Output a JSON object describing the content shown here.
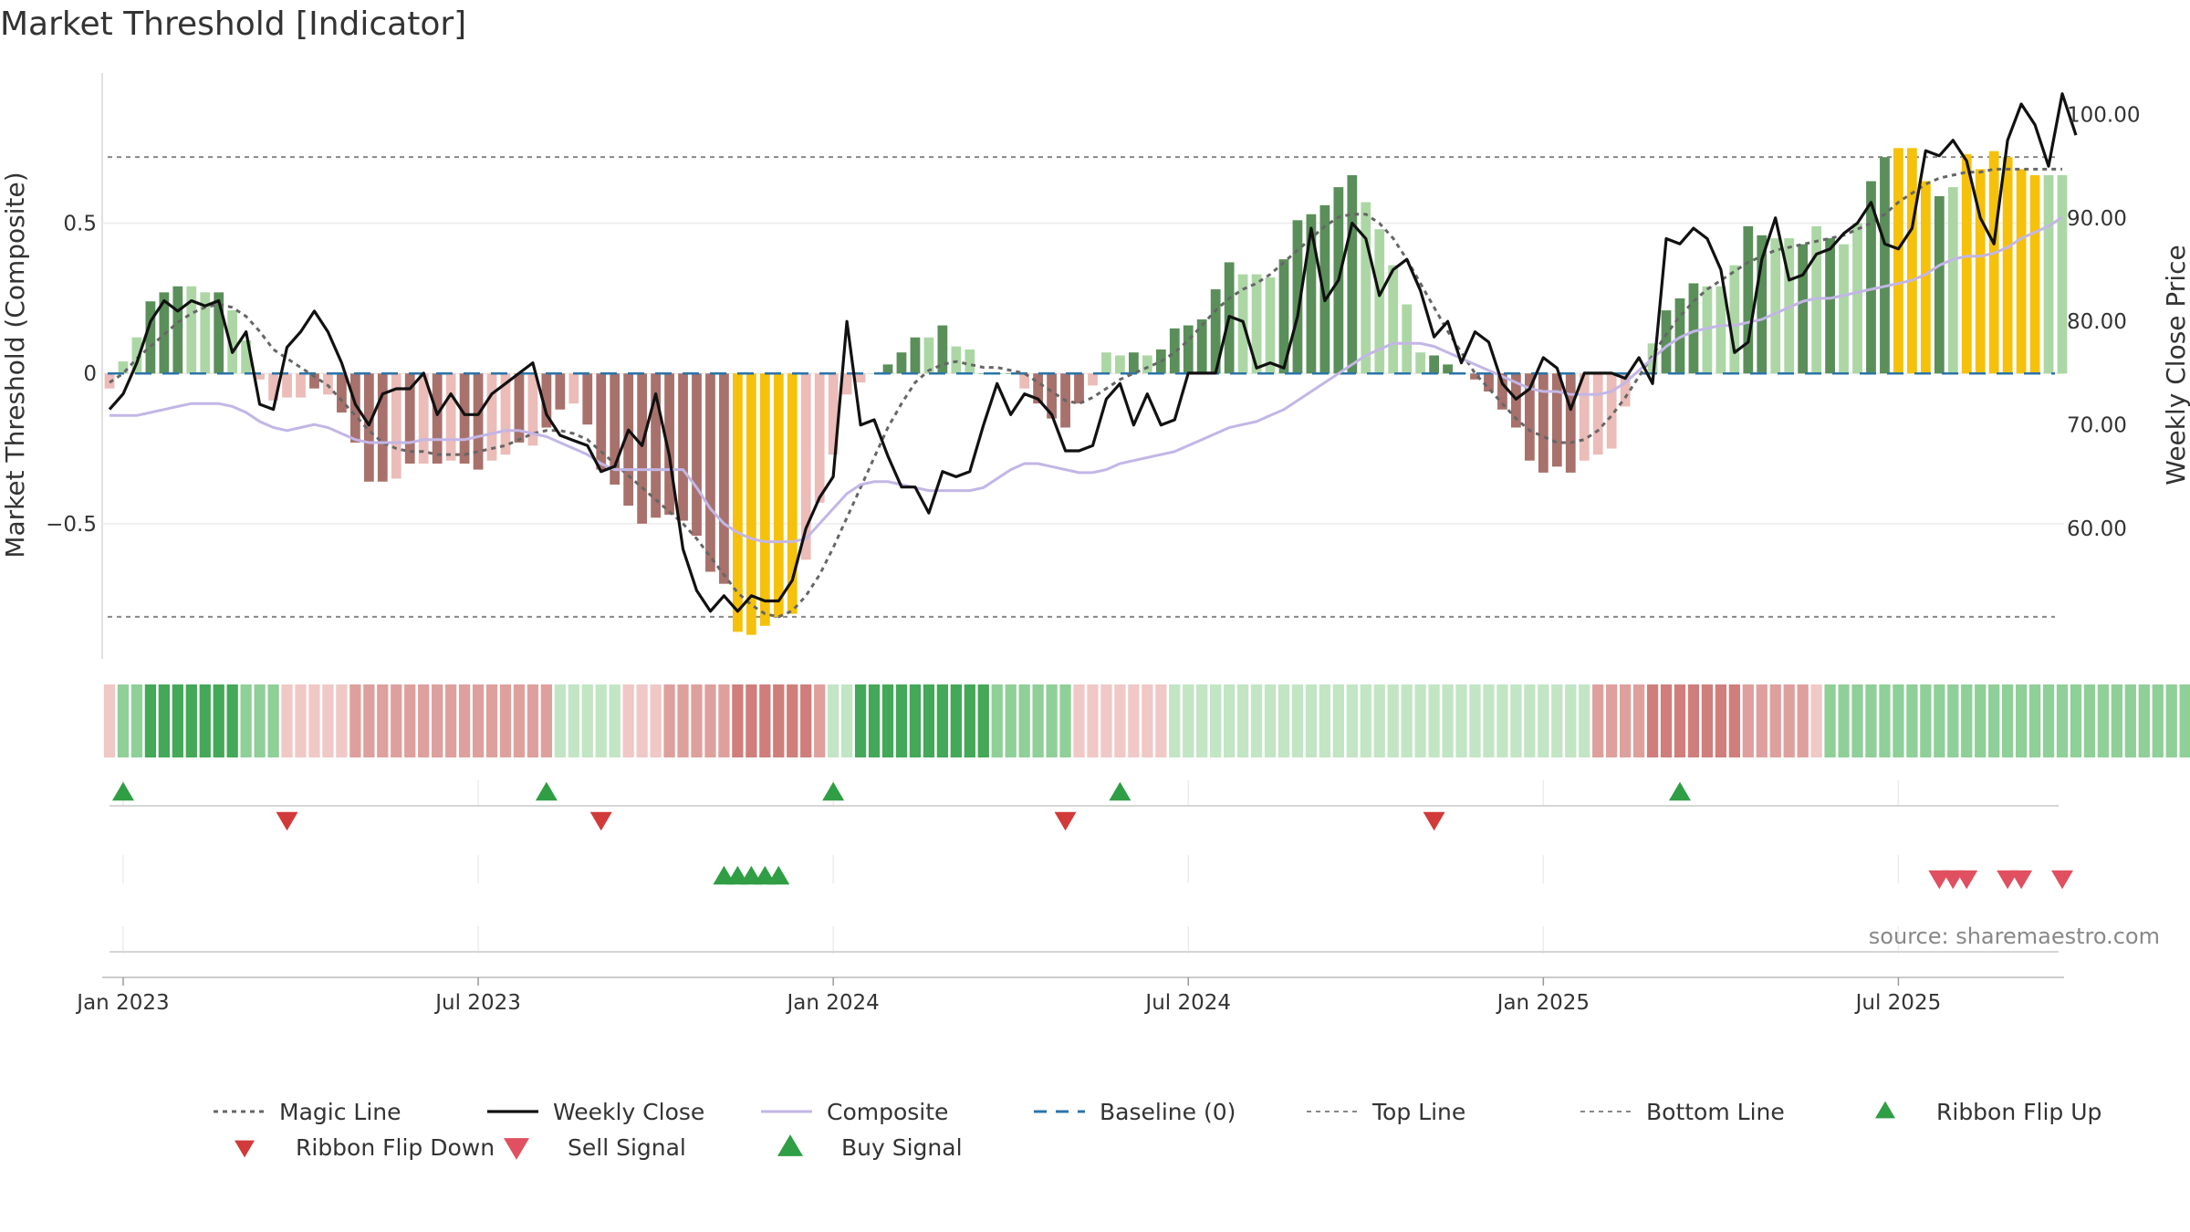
{
  "chart_data": {
    "type": "bar",
    "title": "Market Threshold [Indicator]",
    "ylabel_left": "Market Threshold (Composite)",
    "ylabel_right": "Weekly Close Price",
    "source": "source: sharemaestro.com",
    "left_axis": {
      "range": [
        -0.95,
        1.0
      ],
      "ticks": [
        "0.5",
        "0",
        "−0.5"
      ],
      "tick_values": [
        0.5,
        0,
        -0.5
      ]
    },
    "right_axis": {
      "range": [
        47.4,
        104.0
      ],
      "ticks": [
        "100.00",
        "90.00",
        "80.00",
        "70.00",
        "60.00"
      ],
      "tick_values": [
        100,
        90,
        80,
        70,
        60
      ]
    },
    "x_axis": {
      "start_date": "2022-12-25",
      "weeks": 144,
      "ticks": [
        "Jan 2023",
        "Jul 2023",
        "Jan 2024",
        "Jul 2024",
        "Jan 2025",
        "Jul 2025"
      ],
      "tick_weeks": [
        1,
        27,
        53,
        79,
        105,
        131
      ]
    },
    "reference_lines": {
      "top_line": 0.72,
      "bottom_line": -0.81,
      "baseline": 0
    },
    "composite_bars": [
      -0.05,
      0.04,
      0.12,
      0.24,
      0.27,
      0.29,
      0.29,
      0.27,
      0.27,
      0.21,
      0.11,
      -0.02,
      -0.09,
      -0.08,
      -0.08,
      -0.05,
      -0.07,
      -0.13,
      -0.23,
      -0.36,
      -0.36,
      -0.35,
      -0.3,
      -0.3,
      -0.3,
      -0.29,
      -0.3,
      -0.32,
      -0.29,
      -0.27,
      -0.23,
      -0.24,
      -0.18,
      -0.12,
      -0.1,
      -0.17,
      -0.32,
      -0.37,
      -0.44,
      -0.5,
      -0.48,
      -0.47,
      -0.49,
      -0.54,
      -0.66,
      -0.7,
      -0.86,
      -0.87,
      -0.84,
      -0.81,
      -0.8,
      -0.62,
      -0.43,
      -0.27,
      -0.07,
      -0.03,
      0.0,
      0.03,
      0.07,
      0.12,
      0.12,
      0.16,
      0.09,
      0.08,
      0.0,
      0.0,
      0.0,
      -0.05,
      -0.1,
      -0.15,
      -0.18,
      -0.1,
      -0.04,
      0.07,
      0.06,
      0.07,
      0.06,
      0.08,
      0.15,
      0.16,
      0.18,
      0.28,
      0.37,
      0.33,
      0.33,
      0.32,
      0.38,
      0.51,
      0.53,
      0.56,
      0.62,
      0.66,
      0.57,
      0.48,
      0.36,
      0.23,
      0.07,
      0.06,
      0.03,
      0.0,
      -0.02,
      -0.06,
      -0.12,
      -0.18,
      -0.29,
      -0.33,
      -0.31,
      -0.33,
      -0.29,
      -0.27,
      -0.25,
      -0.11,
      0.0,
      0.1,
      0.21,
      0.25,
      0.3,
      0.29,
      0.29,
      0.36,
      0.49,
      0.46,
      0.45,
      0.45,
      0.43,
      0.49,
      0.45,
      0.43,
      0.5,
      0.64,
      0.72,
      0.75,
      0.75,
      0.64,
      0.59,
      0.62,
      0.73,
      0.68,
      0.74,
      0.72,
      0.68,
      0.66,
      0.66,
      0.66
    ],
    "bar_states": [
      "lr",
      "lg",
      "lg",
      "dg",
      "dg",
      "dg",
      "lg",
      "lg",
      "dg",
      "lg",
      "lg",
      "lr",
      "lr",
      "lr",
      "lr",
      "dr",
      "lr",
      "dr",
      "dr",
      "dr",
      "dr",
      "lr",
      "dr",
      "lr",
      "dr",
      "lr",
      "dr",
      "dr",
      "lr",
      "lr",
      "dr",
      "lr",
      "dr",
      "dr",
      "lr",
      "dr",
      "dr",
      "dr",
      "dr",
      "dr",
      "dr",
      "dr",
      "dr",
      "dr",
      "dr",
      "dr",
      "y",
      "y",
      "y",
      "y",
      "y",
      "lr",
      "lr",
      "lr",
      "lr",
      "lr",
      "lg",
      "dg",
      "dg",
      "dg",
      "lg",
      "dg",
      "lg",
      "lg",
      "dg",
      "dg",
      "dg",
      "lr",
      "dr",
      "dr",
      "dr",
      "dr",
      "lr",
      "lg",
      "lg",
      "dg",
      "lg",
      "dg",
      "dg",
      "dg",
      "dg",
      "dg",
      "dg",
      "lg",
      "lg",
      "lg",
      "dg",
      "dg",
      "dg",
      "dg",
      "dg",
      "dg",
      "lg",
      "lg",
      "lg",
      "lg",
      "lg",
      "dg",
      "dg",
      "dg",
      "dr",
      "dr",
      "dr",
      "dr",
      "dr",
      "dr",
      "dr",
      "dr",
      "lr",
      "lr",
      "lr",
      "lr",
      "lr",
      "lg",
      "dg",
      "dg",
      "dg",
      "lg",
      "lg",
      "lg",
      "dg",
      "dg",
      "lg",
      "lg",
      "dg",
      "lg",
      "dg",
      "lg",
      "lg",
      "dg",
      "dg",
      "y",
      "y",
      "y",
      "dg",
      "lg",
      "y",
      "y",
      "y",
      "y",
      "y",
      "y",
      "lg",
      "lg",
      "lg"
    ],
    "magic_line": [
      -0.03,
      0.0,
      0.05,
      0.09,
      0.13,
      0.17,
      0.2,
      0.22,
      0.23,
      0.22,
      0.19,
      0.14,
      0.08,
      0.05,
      0.02,
      -0.01,
      -0.04,
      -0.09,
      -0.14,
      -0.19,
      -0.23,
      -0.25,
      -0.26,
      -0.26,
      -0.27,
      -0.27,
      -0.27,
      -0.26,
      -0.25,
      -0.24,
      -0.22,
      -0.2,
      -0.19,
      -0.19,
      -0.2,
      -0.22,
      -0.26,
      -0.3,
      -0.34,
      -0.38,
      -0.42,
      -0.46,
      -0.5,
      -0.55,
      -0.61,
      -0.67,
      -0.73,
      -0.77,
      -0.8,
      -0.81,
      -0.79,
      -0.74,
      -0.67,
      -0.58,
      -0.48,
      -0.38,
      -0.28,
      -0.18,
      -0.1,
      -0.03,
      0.01,
      0.03,
      0.04,
      0.03,
      0.02,
      0.02,
      0.01,
      0.0,
      -0.03,
      -0.06,
      -0.09,
      -0.1,
      -0.08,
      -0.05,
      -0.02,
      0.0,
      0.02,
      0.04,
      0.07,
      0.11,
      0.16,
      0.21,
      0.25,
      0.28,
      0.3,
      0.33,
      0.37,
      0.41,
      0.45,
      0.49,
      0.52,
      0.53,
      0.53,
      0.5,
      0.45,
      0.38,
      0.3,
      0.22,
      0.14,
      0.07,
      0.0,
      -0.05,
      -0.1,
      -0.15,
      -0.19,
      -0.21,
      -0.23,
      -0.23,
      -0.22,
      -0.19,
      -0.14,
      -0.08,
      -0.01,
      0.06,
      0.13,
      0.19,
      0.24,
      0.28,
      0.31,
      0.34,
      0.37,
      0.39,
      0.41,
      0.42,
      0.43,
      0.44,
      0.45,
      0.46,
      0.48,
      0.5,
      0.53,
      0.57,
      0.6,
      0.63,
      0.65,
      0.66,
      0.67,
      0.67,
      0.68,
      0.68,
      0.68,
      0.68,
      0.68,
      0.68
    ],
    "composite_line": [
      -0.14,
      -0.14,
      -0.14,
      -0.13,
      -0.12,
      -0.11,
      -0.1,
      -0.1,
      -0.1,
      -0.11,
      -0.13,
      -0.16,
      -0.18,
      -0.19,
      -0.18,
      -0.17,
      -0.18,
      -0.2,
      -0.22,
      -0.23,
      -0.23,
      -0.23,
      -0.23,
      -0.22,
      -0.22,
      -0.22,
      -0.22,
      -0.21,
      -0.2,
      -0.19,
      -0.19,
      -0.2,
      -0.21,
      -0.23,
      -0.25,
      -0.27,
      -0.3,
      -0.32,
      -0.32,
      -0.32,
      -0.32,
      -0.32,
      -0.32,
      -0.38,
      -0.45,
      -0.5,
      -0.53,
      -0.55,
      -0.56,
      -0.56,
      -0.56,
      -0.55,
      -0.5,
      -0.45,
      -0.4,
      -0.37,
      -0.36,
      -0.36,
      -0.37,
      -0.38,
      -0.39,
      -0.39,
      -0.39,
      -0.39,
      -0.38,
      -0.35,
      -0.32,
      -0.3,
      -0.3,
      -0.31,
      -0.32,
      -0.33,
      -0.33,
      -0.32,
      -0.3,
      -0.29,
      -0.28,
      -0.27,
      -0.26,
      -0.24,
      -0.22,
      -0.2,
      -0.18,
      -0.17,
      -0.16,
      -0.14,
      -0.12,
      -0.09,
      -0.06,
      -0.03,
      0.0,
      0.03,
      0.06,
      0.08,
      0.1,
      0.1,
      0.1,
      0.09,
      0.07,
      0.05,
      0.03,
      0.01,
      -0.01,
      -0.03,
      -0.05,
      -0.06,
      -0.06,
      -0.07,
      -0.07,
      -0.07,
      -0.06,
      -0.03,
      0.01,
      0.05,
      0.09,
      0.12,
      0.14,
      0.15,
      0.16,
      0.16,
      0.17,
      0.18,
      0.2,
      0.22,
      0.24,
      0.25,
      0.25,
      0.26,
      0.27,
      0.28,
      0.29,
      0.3,
      0.31,
      0.33,
      0.36,
      0.38,
      0.39,
      0.39,
      0.4,
      0.42,
      0.45,
      0.47,
      0.49,
      0.52
    ],
    "weekly_close": [
      71.5,
      73.0,
      76.0,
      80.0,
      82.0,
      81.0,
      82.0,
      81.5,
      82.0,
      77.0,
      79.0,
      72.0,
      71.5,
      77.5,
      79.0,
      81.0,
      79.0,
      76.0,
      72.0,
      70.0,
      73.0,
      73.5,
      73.5,
      75.0,
      71.0,
      73.0,
      71.0,
      71.0,
      73.0,
      74.0,
      75.0,
      76.0,
      71.0,
      69.0,
      68.5,
      68.0,
      65.5,
      66.0,
      69.5,
      68.0,
      73.0,
      67.0,
      58.0,
      54.0,
      52.0,
      53.5,
      52.0,
      53.5,
      53.0,
      53.0,
      55.0,
      60.0,
      63.0,
      65.0,
      80.0,
      70.0,
      70.5,
      67.0,
      64.0,
      64.0,
      61.5,
      65.5,
      65.0,
      65.5,
      70.0,
      74.0,
      71.0,
      73.0,
      72.5,
      71.0,
      67.5,
      67.5,
      68.0,
      72.5,
      74.0,
      70.0,
      73.0,
      70.0,
      70.5,
      75.0,
      75.0,
      75.0,
      80.5,
      80.0,
      75.5,
      76.0,
      75.5,
      80.5,
      89.0,
      82.0,
      84.0,
      89.5,
      88.0,
      82.5,
      85.0,
      86.0,
      83.0,
      78.5,
      80.0,
      76.0,
      79.0,
      78.0,
      74.0,
      72.5,
      73.5,
      76.5,
      75.5,
      71.5,
      75.0,
      75.0,
      75.0,
      74.5,
      76.5,
      74.0,
      88.0,
      87.5,
      89.0,
      88.0,
      85.0,
      77.0,
      78.0,
      86.0,
      90.0,
      84.0,
      84.5,
      86.5,
      87.0,
      88.5,
      89.5,
      91.5,
      87.5,
      87.0,
      89.0,
      96.5,
      96.0,
      97.5,
      95.5,
      90.0,
      87.5,
      97.5,
      101.0,
      99.0,
      95.0,
      102.0,
      98.0
    ],
    "ribbon": [
      "lr",
      "g",
      "g",
      "G",
      "G",
      "G",
      "G",
      "G",
      "G",
      "G",
      "g",
      "g",
      "g",
      "lr",
      "lr",
      "lr",
      "lr",
      "lr",
      "r",
      "r",
      "r",
      "r",
      "r",
      "r",
      "r",
      "r",
      "r",
      "r",
      "r",
      "r",
      "r",
      "r",
      "r",
      "lg",
      "lg",
      "lg",
      "lg",
      "lg",
      "lr",
      "lr",
      "lr",
      "r",
      "r",
      "r",
      "r",
      "r",
      "R",
      "R",
      "R",
      "R",
      "R",
      "R",
      "r",
      "lg",
      "lg",
      "G",
      "G",
      "G",
      "G",
      "G",
      "G",
      "G",
      "G",
      "G",
      "G",
      "g",
      "g",
      "g",
      "g",
      "g",
      "g",
      "lr",
      "lr",
      "lr",
      "lr",
      "lr",
      "lr",
      "lr",
      "lg",
      "lg",
      "lg",
      "lg",
      "lg",
      "lg",
      "lg",
      "lg",
      "lg",
      "lg",
      "lg",
      "lg",
      "lg",
      "lg",
      "lg",
      "lg",
      "lg",
      "lg",
      "lg",
      "lg",
      "lg",
      "lg",
      "lg",
      "lg",
      "lg",
      "lg",
      "lg",
      "lg",
      "lg",
      "lg",
      "lg",
      "r",
      "r",
      "r",
      "r",
      "R",
      "R",
      "R",
      "R",
      "R",
      "R",
      "R",
      "r",
      "r",
      "r",
      "r",
      "r",
      "lr",
      "g",
      "g",
      "g",
      "g",
      "g",
      "g",
      "g",
      "g",
      "g",
      "g",
      "g",
      "g",
      "g",
      "g",
      "g",
      "g",
      "g",
      "g",
      "g",
      "g",
      "g",
      "g",
      "g",
      "g",
      "g",
      "g",
      "g",
      "g",
      "g"
    ],
    "events": {
      "ribbon_flip_up": [
        1,
        32,
        53,
        74,
        115
      ],
      "ribbon_flip_down": [
        13,
        36,
        70,
        97
      ],
      "buy_signal": [
        45,
        46,
        47,
        48,
        49
      ],
      "sell_signal": [
        134,
        135,
        136,
        139,
        140,
        143
      ]
    },
    "legend": [
      {
        "label": "Magic Line"
      },
      {
        "label": "Weekly Close"
      },
      {
        "label": "Composite"
      },
      {
        "label": "Baseline (0)"
      },
      {
        "label": "Top Line"
      },
      {
        "label": "Bottom Line"
      },
      {
        "label": "Ribbon Flip Up"
      },
      {
        "label": "Ribbon Flip Down"
      },
      {
        "label": "Sell Signal"
      },
      {
        "label": "Buy Signal"
      }
    ],
    "colors": {
      "dark_green": "#5a8f5a",
      "light_green": "#acd7a5",
      "dark_red": "#a8716c",
      "light_red": "#ebbcb8",
      "yellow": "#f6c10a",
      "magic_line": "#666666",
      "weekly_close": "#111111",
      "composite_line": "#c3b6e6",
      "baseline": "#2b74a8",
      "ref_lines": "#888888",
      "flip_up": "#2f9e44",
      "flip_down": "#d23a3a",
      "sell": "#e05060",
      "buy": "#2f9e44"
    }
  }
}
